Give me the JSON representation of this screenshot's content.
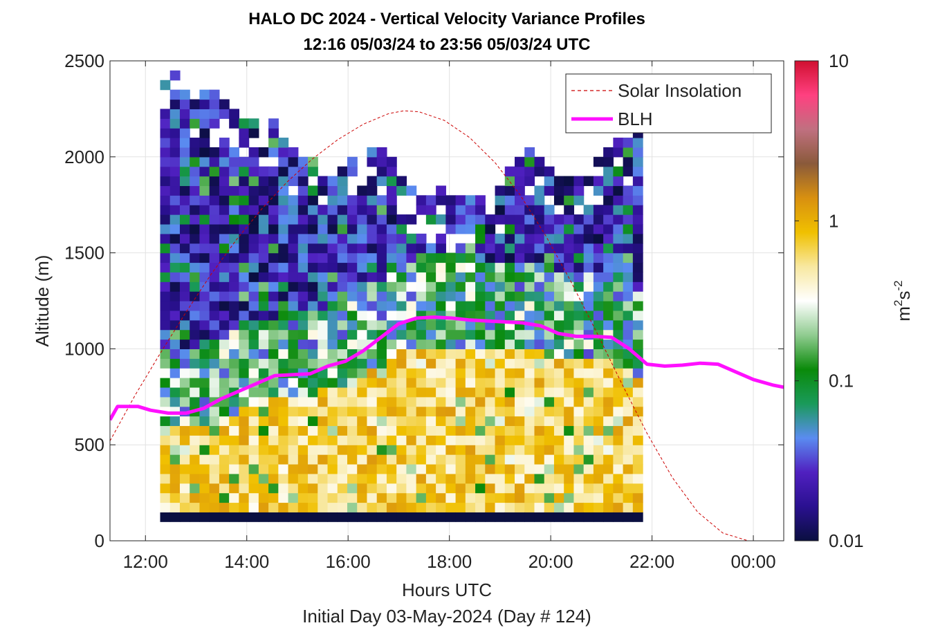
{
  "chart_data": {
    "type": "heatmap",
    "title_lines": [
      "HALO DC 2024 - Vertical Velocity Variance Profiles",
      "12:16 05/03/24 to 23:56 05/03/24  UTC"
    ],
    "xlabel": "Hours UTC",
    "subtitle": "Initial Day 03-May-2024 (Day # 124)",
    "ylabel": "Altitude (m)",
    "colorbar_label": "m²s⁻²",
    "colorbar_label_parts": {
      "base1": "m",
      "sup1": "2",
      "base2": "s",
      "sup2": "-2"
    },
    "xlim": [
      11.3,
      24.6
    ],
    "ylim": [
      0,
      2500
    ],
    "x_ticks": [
      12,
      14,
      16,
      18,
      20,
      22,
      24
    ],
    "x_tick_labels": [
      "12:00",
      "14:00",
      "16:00",
      "18:00",
      "20:00",
      "22:00",
      "00:00"
    ],
    "y_ticks": [
      0,
      500,
      1000,
      1500,
      2000,
      2500
    ],
    "y_tick_labels": [
      "0",
      "500",
      "1000",
      "1500",
      "2000",
      "2500"
    ],
    "colorbar": {
      "scale": "log",
      "range": [
        0.01,
        10
      ],
      "ticks": [
        0.01,
        0.1,
        1,
        10
      ],
      "tick_labels": [
        "0.01",
        "0.1",
        "1",
        "10"
      ],
      "colors": [
        "#0a0f40",
        "#2a1090",
        "#5020c0",
        "#5a8cf0",
        "#1a9a5a",
        "#0a8a0a",
        "#90cc90",
        "#ffffff",
        "#f8e8a0",
        "#f0c000",
        "#d89010",
        "#8a5a3a",
        "#c07080",
        "#ff4080",
        "#d01030"
      ]
    },
    "grid": true,
    "legend": {
      "placement": "top-right",
      "entries": [
        {
          "label": "Solar Insolation",
          "color": "#cc0000",
          "style": "dashed"
        },
        {
          "label": "BLH",
          "color": "#ff10ff",
          "style": "solid"
        }
      ]
    },
    "time_step_hours": 0.1944,
    "first_profile_time": 12.29,
    "gate_alt_step_m": 50,
    "lowest_valid_gate_m": 150,
    "variance_profiles_top_m": [
      2380,
      2420,
      2350,
      2300,
      2330,
      2320,
      2280,
      2250,
      2200,
      2180,
      2150,
      2200,
      2100,
      2050,
      2000,
      1980,
      1950,
      1900,
      1950,
      2000,
      1980,
      2020,
      2050,
      2000,
      1900,
      1850,
      1800,
      1800,
      1850,
      1780,
      1820,
      1800,
      1780,
      1800,
      1820,
      1950,
      2000,
      2050,
      2000,
      1980,
      1950,
      1900,
      1880,
      1900,
      2000,
      2050,
      2100,
      2100,
      2150
    ],
    "series": [
      {
        "name": "BLH",
        "x": [
          11.3,
          11.45,
          11.6,
          11.85,
          12.1,
          12.45,
          12.8,
          13.15,
          13.5,
          13.85,
          14.2,
          14.55,
          14.9,
          15.25,
          15.6,
          15.95,
          16.3,
          16.65,
          17.0,
          17.35,
          17.7,
          18.05,
          18.4,
          18.75,
          19.1,
          19.45,
          19.8,
          20.15,
          20.5,
          20.85,
          21.2,
          21.55,
          21.9,
          22.25,
          22.6,
          22.95,
          23.3,
          23.65,
          24.0,
          24.4,
          24.6
        ],
        "y": [
          630,
          700,
          700,
          700,
          680,
          665,
          665,
          690,
          740,
          780,
          820,
          860,
          865,
          870,
          910,
          935,
          990,
          1060,
          1130,
          1160,
          1165,
          1160,
          1150,
          1145,
          1140,
          1135,
          1120,
          1080,
          1065,
          1065,
          1060,
          1000,
          920,
          910,
          915,
          925,
          920,
          880,
          840,
          810,
          800
        ]
      },
      {
        "name": "Solar Insolation",
        "x": [
          11.3,
          11.8,
          12.3,
          12.8,
          13.3,
          13.8,
          14.3,
          14.8,
          15.3,
          15.8,
          16.3,
          16.8,
          17.1,
          17.4,
          17.9,
          18.4,
          18.9,
          19.4,
          19.9,
          20.4,
          20.9,
          21.4,
          21.9,
          22.4,
          22.9,
          23.4,
          23.9,
          24.1,
          24.6
        ],
        "y": [
          520,
          760,
          980,
          1190,
          1390,
          1570,
          1730,
          1870,
          1990,
          2090,
          2170,
          2225,
          2240,
          2235,
          2190,
          2100,
          1970,
          1800,
          1590,
          1350,
          1090,
          820,
          560,
          330,
          150,
          40,
          0,
          0,
          0
        ]
      }
    ]
  }
}
